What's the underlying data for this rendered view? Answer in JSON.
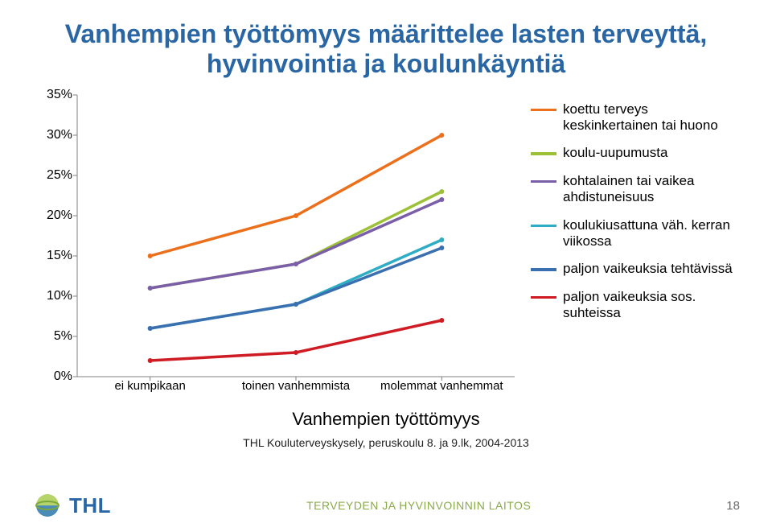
{
  "title": "Vanhempien työttömyys määrittelee lasten terveyttä, hyvinvointia ja koulunkäyntiä",
  "subtitle": "Vanhempien työttömyys",
  "source": "THL Kouluterveyskysely, peruskoulu 8. ja 9.lk, 2004-2013",
  "org": "TERVEYDEN JA HYVINVOINNIN LAITOS",
  "logo_text": "THL",
  "page_number": "18",
  "chart": {
    "type": "line",
    "categories": [
      "ei kumpikaan",
      "toinen vanhemmista",
      "molemmat vanhemmat"
    ],
    "ylim": [
      0,
      35
    ],
    "ytick_step": 5,
    "y_suffix": "%",
    "background_color": "#ffffff",
    "axis_color": "#808080",
    "line_width": 3.5,
    "marker_size": 6,
    "tick_fontsize": 16,
    "series": [
      {
        "label": "koettu terveys keskinkertainen tai huono",
        "color": "#ec6f1b",
        "values": [
          15,
          20,
          30
        ]
      },
      {
        "label": "koulu-uupumusta",
        "color": "#9cc137",
        "values": [
          11,
          14,
          23
        ]
      },
      {
        "label": "kohtalainen tai vaikea ahdistuneisuus",
        "color": "#7a5fa8",
        "values": [
          11,
          14,
          22
        ]
      },
      {
        "label": "koulukiusattuna väh. kerran viikossa",
        "color": "#2fadc4",
        "values": [
          6,
          9,
          17
        ]
      },
      {
        "label": "paljon vaikeuksia tehtävissä",
        "color": "#3a6fb0",
        "values": [
          6,
          9,
          16
        ]
      },
      {
        "label": "paljon vaikeuksia sos. suhteissa",
        "color": "#cf1c24",
        "values": [
          2,
          3,
          7
        ]
      }
    ]
  },
  "logo_colors": {
    "globe_top": "#b5d46a",
    "globe_bottom": "#4a8bb8",
    "ring": "#7aa63a"
  },
  "title_color": "#2966a3",
  "title_fontsize": 32
}
